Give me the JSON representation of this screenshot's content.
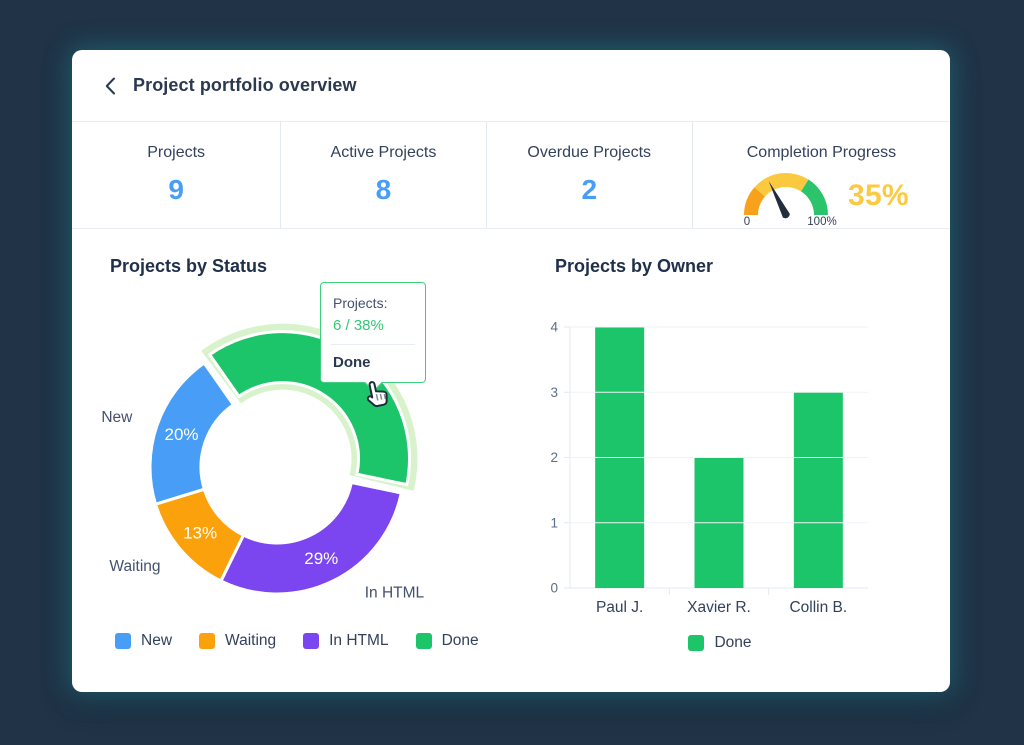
{
  "colors": {
    "background": "#203347",
    "card": "#ffffff",
    "accent_blue": "#489ef6",
    "accent_green": "#1cc56a",
    "accent_orange": "#fba10b",
    "accent_purple": "#7b46ef",
    "accent_yellow": "#fbca41",
    "text_dark": "#2b3950",
    "text_muted": "#44516d",
    "grid": "#eef2f7",
    "axis": "#e3e9f1"
  },
  "icons": {
    "back": "chevron-left-icon",
    "pointer": "hand-pointer-icon"
  },
  "header": {
    "title": "Project portfolio overview"
  },
  "stats": [
    {
      "label": "Projects",
      "value": "9"
    },
    {
      "label": "Active Projects",
      "value": "8"
    },
    {
      "label": "Overdue Projects",
      "value": "2"
    },
    {
      "label": "Completion Progress",
      "gauge": {
        "min_label": "0",
        "max_label": "100%",
        "value_label": "35%",
        "value_pct": 35,
        "value_color": "#fbca41",
        "needle_color": "#232c3d",
        "segments": [
          {
            "color": "#f9a11b",
            "from_pct": 0,
            "to_pct": 23
          },
          {
            "color": "#fbc93f",
            "from_pct": 23,
            "to_pct": 68
          },
          {
            "color": "#2bc46a",
            "from_pct": 68,
            "to_pct": 100
          }
        ]
      }
    }
  ],
  "chart_data": [
    {
      "type": "pie",
      "donut": true,
      "title": "Projects by Status",
      "start_angle_deg": -35,
      "segments": [
        {
          "label": "Done",
          "pct": 38,
          "count": 6,
          "color": "#1cc56a",
          "hovered": true,
          "halo_color": "#d8f3cb"
        },
        {
          "label": "In HTML",
          "pct": 29,
          "color": "#7b46ef",
          "label_angle_deg": 145
        },
        {
          "label": "Waiting",
          "pct": 13,
          "color": "#fba10b"
        },
        {
          "label": "New",
          "pct": 20,
          "color": "#489ef6"
        }
      ],
      "tooltip": {
        "title": "Projects:",
        "value": "6 / 38%",
        "series": "Done"
      },
      "legend_position": "bottom",
      "legend": [
        {
          "label": "New",
          "color": "#489ef6"
        },
        {
          "label": "Waiting",
          "color": "#fba10b"
        },
        {
          "label": "In HTML",
          "color": "#7b46ef"
        },
        {
          "label": "Done",
          "color": "#1cc56a"
        }
      ]
    },
    {
      "type": "bar",
      "title": "Projects by Owner",
      "categories": [
        "Paul J.",
        "Xavier R.",
        "Collin B."
      ],
      "series": [
        {
          "name": "Done",
          "color": "#1cc56a",
          "values": [
            4,
            2,
            3
          ]
        }
      ],
      "ylim": [
        0,
        4
      ],
      "yticks": [
        0,
        1,
        2,
        3,
        4
      ],
      "grid": true,
      "legend_position": "bottom",
      "legend": [
        {
          "label": "Done",
          "color": "#1cc56a"
        }
      ]
    }
  ]
}
